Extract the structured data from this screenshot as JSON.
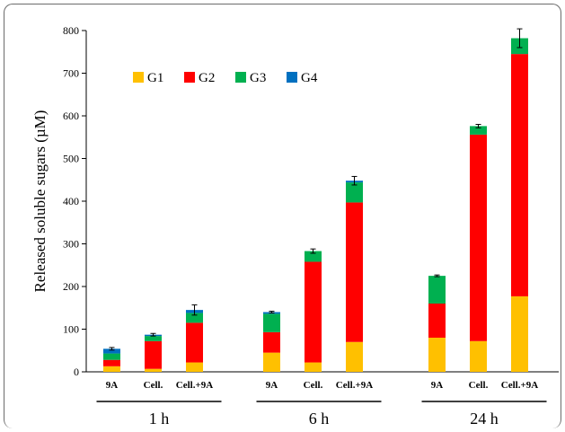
{
  "chart_data": {
    "type": "bar",
    "stacked": true,
    "ylabel": "Released soluble sugars (µM)",
    "ylim": [
      0,
      800
    ],
    "yticks": [
      0,
      100,
      200,
      300,
      400,
      500,
      600,
      700,
      800
    ],
    "legend_position": "top-left",
    "categories": [
      "9A",
      "Cell.",
      "Cell.+9A",
      "9A",
      "Cell.",
      "Cell.+9A",
      "9A",
      "Cell.",
      "Cell.+9A"
    ],
    "groups": [
      {
        "label": "1 h",
        "categories": [
          "9A",
          "Cell.",
          "Cell.+9A"
        ]
      },
      {
        "label": "6 h",
        "categories": [
          "9A",
          "Cell.",
          "Cell.+9A"
        ]
      },
      {
        "label": "24 h",
        "categories": [
          "9A",
          "Cell.",
          "Cell.+9A"
        ]
      }
    ],
    "series": [
      {
        "name": "G1",
        "color": "#FFC000",
        "values": [
          13,
          7,
          22,
          45,
          22,
          70,
          80,
          72,
          177
        ]
      },
      {
        "name": "G2",
        "color": "#FF0000",
        "values": [
          15,
          65,
          93,
          48,
          236,
          327,
          80,
          484,
          568
        ]
      },
      {
        "name": "G3",
        "color": "#00B050",
        "values": [
          15,
          12,
          23,
          43,
          25,
          47,
          65,
          20,
          37
        ]
      },
      {
        "name": "G4",
        "color": "#0070C0",
        "values": [
          11,
          3,
          7,
          4,
          0,
          4,
          0,
          0,
          0
        ]
      }
    ],
    "error_bars": [
      3,
      3,
      12,
      2,
      5,
      10,
      2,
      4,
      22
    ]
  }
}
